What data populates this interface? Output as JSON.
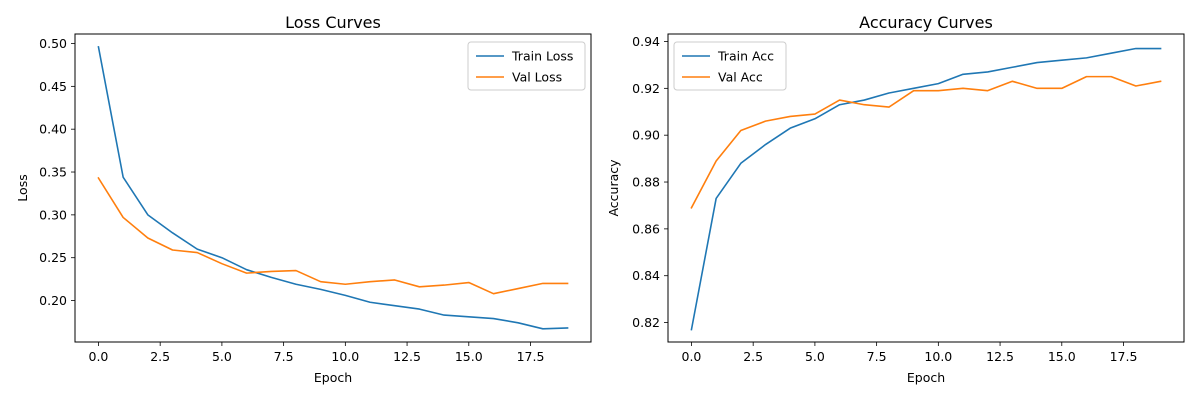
{
  "chart_data": [
    {
      "type": "line",
      "title": "Loss Curves",
      "xlabel": "Epoch",
      "ylabel": "Loss",
      "xlim": [
        -0.95,
        19.95
      ],
      "ylim": [
        0.1516,
        0.5111
      ],
      "xticks": [
        0.0,
        2.5,
        5.0,
        7.5,
        10.0,
        12.5,
        15.0,
        17.5
      ],
      "xtick_labels": [
        "0.0",
        "2.5",
        "5.0",
        "7.5",
        "10.0",
        "12.5",
        "15.0",
        "17.5"
      ],
      "yticks": [
        0.2,
        0.25,
        0.3,
        0.35,
        0.4,
        0.45,
        0.5
      ],
      "ytick_labels": [
        "0.20",
        "0.25",
        "0.30",
        "0.35",
        "0.40",
        "0.45",
        "0.50"
      ],
      "legend_position": "upper right",
      "x": [
        0,
        1,
        2,
        3,
        4,
        5,
        6,
        7,
        8,
        9,
        10,
        11,
        12,
        13,
        14,
        15,
        16,
        17,
        18,
        19
      ],
      "series": [
        {
          "name": "Train Loss",
          "color": "#1f77b4",
          "values": [
            0.496,
            0.344,
            0.3,
            0.279,
            0.26,
            0.25,
            0.236,
            0.227,
            0.219,
            0.213,
            0.206,
            0.198,
            0.194,
            0.19,
            0.183,
            0.181,
            0.179,
            0.174,
            0.167,
            0.168
          ]
        },
        {
          "name": "Val Loss",
          "color": "#ff7f0e",
          "values": [
            0.343,
            0.297,
            0.273,
            0.259,
            0.256,
            0.243,
            0.232,
            0.234,
            0.235,
            0.222,
            0.219,
            0.222,
            0.224,
            0.216,
            0.218,
            0.221,
            0.208,
            0.214,
            0.22,
            0.22
          ]
        }
      ]
    },
    {
      "type": "line",
      "title": "Accuracy Curves",
      "xlabel": "Epoch",
      "ylabel": "Accuracy",
      "xlim": [
        -0.95,
        19.95
      ],
      "ylim": [
        0.8117,
        0.9432
      ],
      "xticks": [
        0.0,
        2.5,
        5.0,
        7.5,
        10.0,
        12.5,
        15.0,
        17.5
      ],
      "xtick_labels": [
        "0.0",
        "2.5",
        "5.0",
        "7.5",
        "10.0",
        "12.5",
        "15.0",
        "17.5"
      ],
      "yticks": [
        0.82,
        0.84,
        0.86,
        0.88,
        0.9,
        0.92,
        0.94
      ],
      "ytick_labels": [
        "0.82",
        "0.84",
        "0.86",
        "0.88",
        "0.90",
        "0.92",
        "0.94"
      ],
      "legend_position": "upper left",
      "x": [
        0,
        1,
        2,
        3,
        4,
        5,
        6,
        7,
        8,
        9,
        10,
        11,
        12,
        13,
        14,
        15,
        16,
        17,
        18,
        19
      ],
      "series": [
        {
          "name": "Train Acc",
          "color": "#1f77b4",
          "values": [
            0.817,
            0.873,
            0.888,
            0.896,
            0.903,
            0.907,
            0.913,
            0.915,
            0.918,
            0.92,
            0.922,
            0.926,
            0.927,
            0.929,
            0.931,
            0.932,
            0.933,
            0.935,
            0.937,
            0.937
          ]
        },
        {
          "name": "Val Acc",
          "color": "#ff7f0e",
          "values": [
            0.869,
            0.889,
            0.902,
            0.906,
            0.908,
            0.909,
            0.915,
            0.913,
            0.912,
            0.919,
            0.919,
            0.92,
            0.919,
            0.923,
            0.92,
            0.92,
            0.925,
            0.925,
            0.921,
            0.923
          ]
        }
      ]
    }
  ]
}
